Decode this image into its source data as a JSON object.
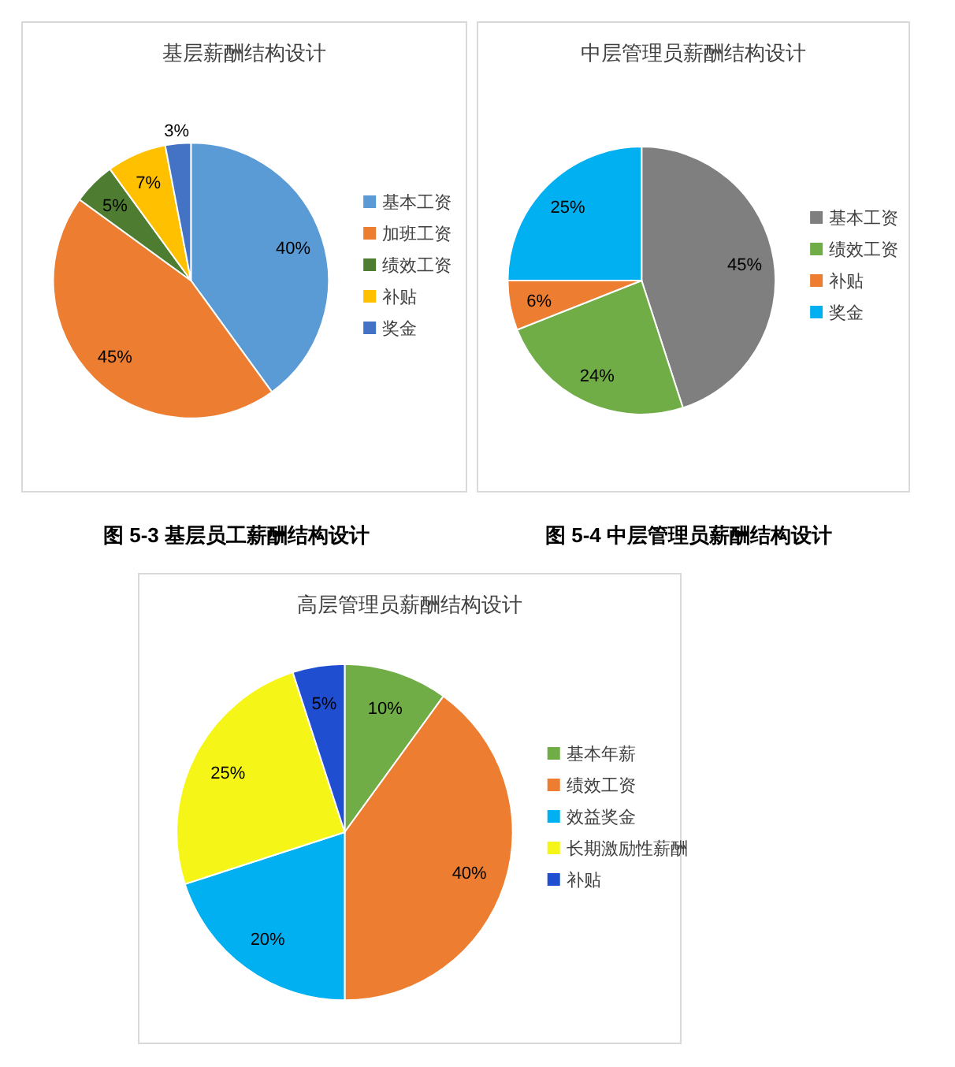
{
  "chart_data": [
    {
      "type": "pie",
      "title": "基层薪酬结构设计",
      "categories": [
        "基本工资",
        "加班工资",
        "绩效工资",
        "补贴",
        "奖金"
      ],
      "values": [
        40,
        45,
        5,
        7,
        3
      ],
      "colors": [
        "#5b9bd5",
        "#ed7d31",
        "#4e7d32",
        "#ffc000",
        "#4472c4"
      ],
      "value_labels": [
        "40%",
        "45%",
        "5%",
        "7%",
        "3%"
      ],
      "legend": "right",
      "annotations": [
        "图 5-3  基层员工薪酬结构设计"
      ]
    },
    {
      "type": "pie",
      "title": "中层管理员薪酬结构设计",
      "categories": [
        "基本工资",
        "绩效工资",
        "补贴",
        "奖金"
      ],
      "values": [
        45,
        24,
        6,
        25
      ],
      "colors": [
        "#7f7f7f",
        "#70ad47",
        "#ed7d31",
        "#00b0f0"
      ],
      "value_labels": [
        "45%",
        "24%",
        "6%",
        "25%"
      ],
      "legend": "right",
      "annotations": [
        "图 5-4  中层管理员薪酬结构设计"
      ]
    },
    {
      "type": "pie",
      "title": "高层管理员薪酬结构设计",
      "categories": [
        "基本年薪",
        "绩效工资",
        "效益奖金",
        "长期激励性薪酬",
        "补贴"
      ],
      "values": [
        10,
        40,
        20,
        25,
        5
      ],
      "colors": [
        "#70ad47",
        "#ed7d31",
        "#00b0f0",
        "#f5f518",
        "#1f4fd0"
      ],
      "value_labels": [
        "10%",
        "40%",
        "20%",
        "25%",
        "5%"
      ],
      "legend": "right"
    }
  ]
}
